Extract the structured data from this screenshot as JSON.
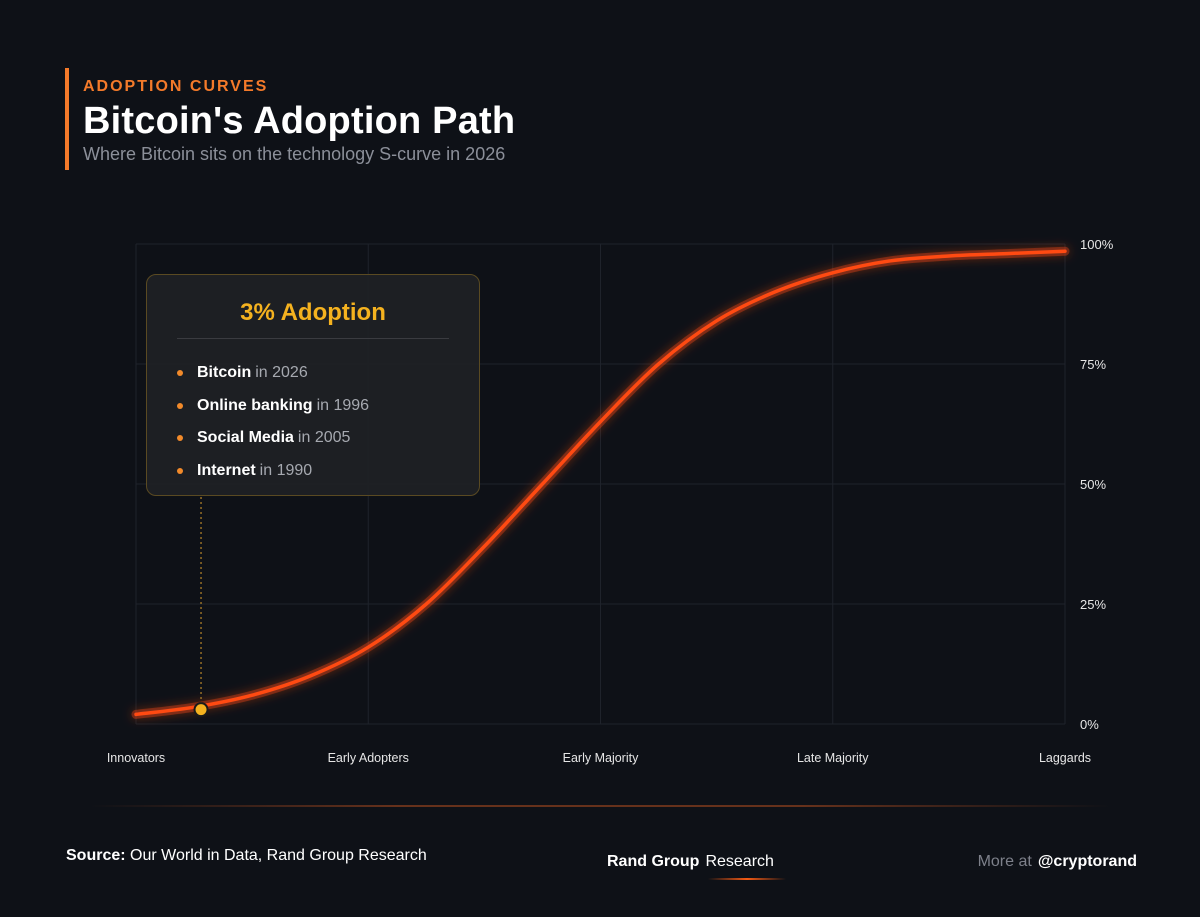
{
  "header": {
    "kicker": "ADOPTION CURVES",
    "title": "Bitcoin's Adoption Path",
    "subtitle": "Where Bitcoin sits on the technology S-curve in 2026"
  },
  "chart_data": {
    "type": "line",
    "title": "Bitcoin's Adoption Path",
    "xlabel": "",
    "ylabel": "",
    "ylim": [
      0,
      100
    ],
    "y_ticks": [
      "0%",
      "25%",
      "50%",
      "75%",
      "100%"
    ],
    "x_categories": [
      "Innovators",
      "Early Adopters",
      "Early Majority",
      "Late Majority",
      "Laggards"
    ],
    "grid": true,
    "series": [
      {
        "x": [
          0,
          0.25,
          0.5,
          0.75,
          1.0,
          1.25,
          1.5,
          1.75,
          2.0,
          2.25,
          2.5,
          2.75,
          3.0,
          3.25,
          3.5,
          3.75,
          4.0
        ],
        "values": [
          2,
          3.5,
          6,
          10,
          16,
          25,
          37,
          50,
          63,
          75,
          84,
          90,
          94,
          96.5,
          97.5,
          98,
          98.5
        ],
        "color": "#ff4a12"
      }
    ],
    "highlight": {
      "x": 0.28,
      "y": 3,
      "label": "3% Adoption",
      "color": "#f5b21f"
    }
  },
  "callout": {
    "title": "3% Adoption",
    "items": [
      {
        "name": "Bitcoin",
        "year": "in 2026"
      },
      {
        "name": "Online banking",
        "year": "in 1996"
      },
      {
        "name": "Social Media",
        "year": "in 2005"
      },
      {
        "name": "Internet",
        "year": "in 1990"
      }
    ]
  },
  "footer": {
    "source_label": "Source:",
    "source_text": "Our World in Data, Rand Group Research",
    "brand_name": "Rand Group",
    "brand_sub": "Research",
    "more_label": "More at",
    "more_handle": "@cryptorand"
  },
  "colors": {
    "background": "#0e1117",
    "accent": "#f47a2a",
    "curve": "#ff4a12",
    "highlight": "#f5b21f"
  }
}
